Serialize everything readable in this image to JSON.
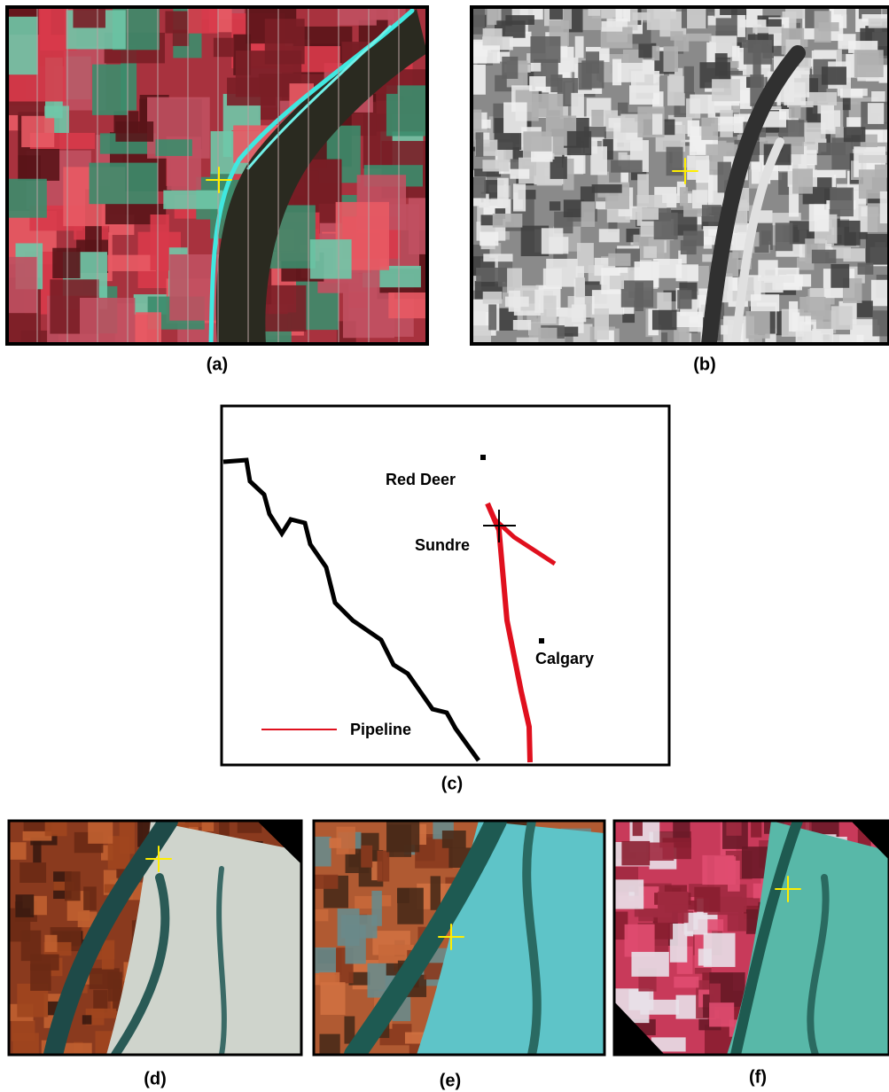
{
  "panels": {
    "a": "(a)",
    "b": "(b)",
    "c": "(c)",
    "d": "(d)",
    "e": "(e)",
    "f": "(f)"
  },
  "map": {
    "places": [
      "Red Deer",
      "Sundre",
      "Calgary"
    ],
    "legend": "Pipeline"
  }
}
